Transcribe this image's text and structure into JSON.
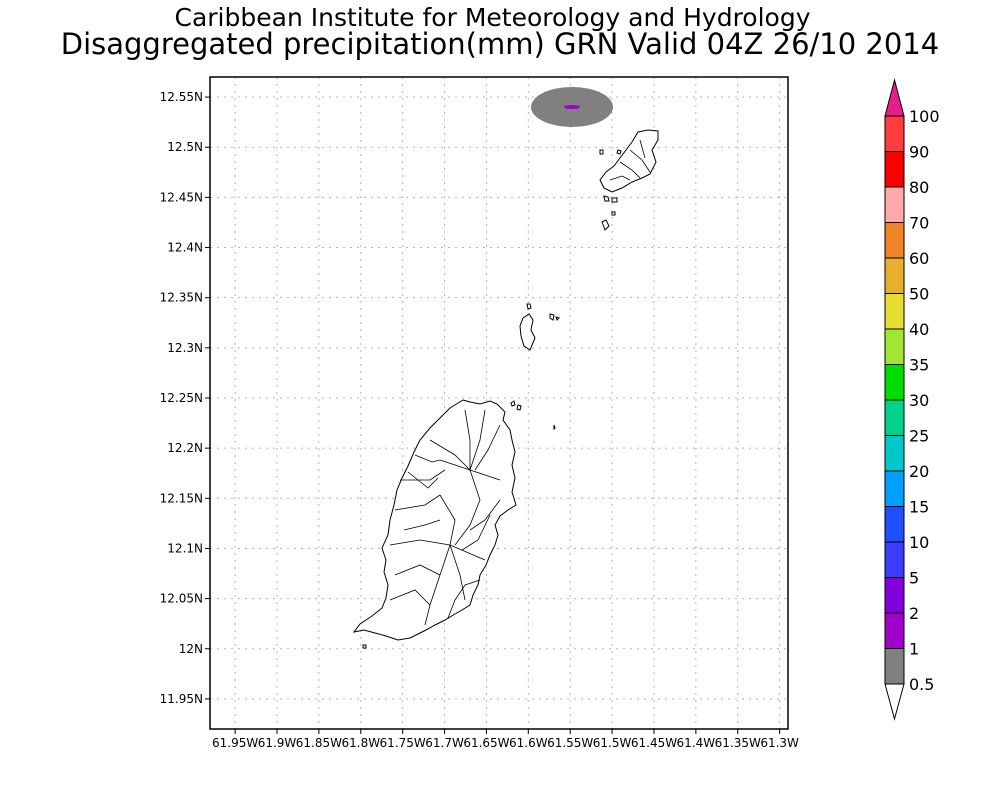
{
  "header": {
    "title_line1": "Caribbean Institute for Meteorology and Hydrology",
    "title_line2": "Disaggregated precipitation(mm) GRN Valid 04Z 26/10 2014"
  },
  "map": {
    "lat_labels": [
      "12.55N",
      "12.5N",
      "12.45N",
      "12.4N",
      "12.35N",
      "12.3N",
      "12.25N",
      "12.2N",
      "12.15N",
      "12.1N",
      "12.05N",
      "12N",
      "11.95N"
    ],
    "lon_labels": [
      "61.95W",
      "61.9W",
      "61.85W",
      "61.8W",
      "61.75W",
      "61.7W",
      "61.65W",
      "61.6W",
      "61.55W",
      "61.5W",
      "61.45W",
      "61.4W",
      "61.35W",
      "61.3W"
    ],
    "lat_values": [
      12.55,
      12.5,
      12.45,
      12.4,
      12.35,
      12.3,
      12.25,
      12.2,
      12.15,
      12.1,
      12.05,
      12.0,
      11.95
    ],
    "lon_values": [
      -61.95,
      -61.9,
      -61.85,
      -61.8,
      -61.75,
      -61.7,
      -61.65,
      -61.6,
      -61.55,
      -61.5,
      -61.45,
      -61.4,
      -61.35,
      -61.3
    ],
    "lat_range": [
      11.92,
      12.57
    ],
    "lon_range": [
      -61.98,
      -61.29
    ],
    "grid": true,
    "precip_patch": {
      "center_lon": -61.52,
      "center_lat": 12.525,
      "class": "0.5-1"
    },
    "colors": {
      "land_fill": "#ffffff",
      "outline": "#000000",
      "grid": "#b5b5b5"
    }
  },
  "colorbar": {
    "labels": [
      "0.5",
      "1",
      "2",
      "5",
      "10",
      "15",
      "20",
      "25",
      "30",
      "35",
      "40",
      "50",
      "60",
      "70",
      "80",
      "90",
      "100"
    ],
    "colors": [
      "#808080",
      "#a000c8",
      "#8200dc",
      "#3c3cff",
      "#1e50ff",
      "#00a0ff",
      "#00c8c8",
      "#00d28c",
      "#00dc00",
      "#a0e632",
      "#e6dc32",
      "#e6af2d",
      "#f08228",
      "#ffaaaa",
      "#fa0000",
      "#ff3c3c",
      "#e61e8c"
    ]
  }
}
